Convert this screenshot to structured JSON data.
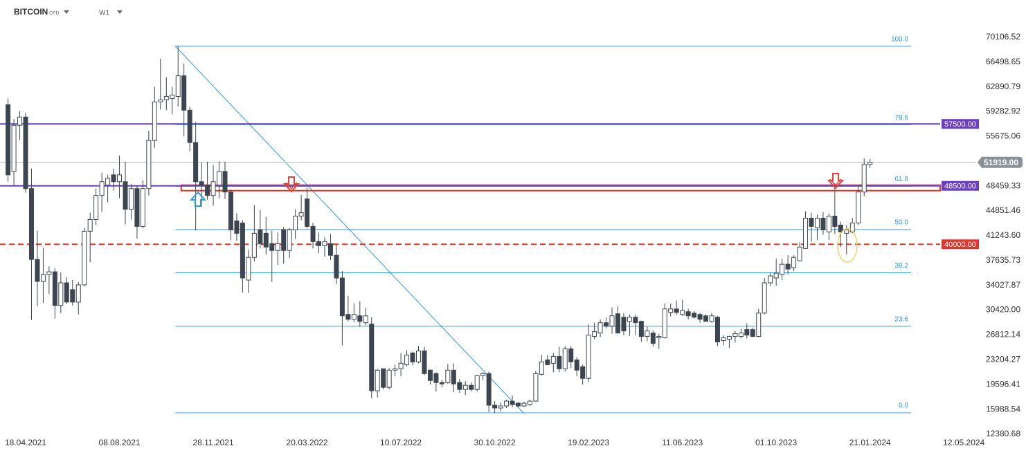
{
  "chart_data": {
    "type": "candlestick",
    "symbol": "BITCOIN",
    "instrument_type": "CFD",
    "timeframe": "W1",
    "categories": [
      null,
      null,
      null,
      "18.04.2021",
      null,
      null,
      null,
      null,
      null,
      null,
      null,
      null,
      null,
      null,
      null,
      null,
      null,
      null,
      null,
      "08.08.2021",
      null,
      null,
      null,
      null,
      null,
      null,
      null,
      null,
      null,
      null,
      null,
      null,
      null,
      null,
      null,
      "28.11.2021",
      null,
      null,
      null,
      null,
      null,
      null,
      null,
      null,
      null,
      null,
      null,
      null,
      null,
      null,
      null,
      "20.03.2022",
      null,
      null,
      null,
      null,
      null,
      null,
      null,
      null,
      null,
      null,
      null,
      null,
      null,
      null,
      null,
      "10.07.2022",
      null,
      null,
      null,
      null,
      null,
      null,
      null,
      null,
      null,
      null,
      null,
      null,
      null,
      null,
      null,
      "30.10.2022",
      null,
      null,
      null,
      null,
      null,
      null,
      null,
      null,
      null,
      null,
      null,
      null,
      null,
      null,
      null,
      "19.02.2023",
      null,
      null,
      null,
      null,
      null,
      null,
      null,
      null,
      null,
      null,
      null,
      null,
      null,
      null,
      null,
      "11.06.2023",
      null,
      null,
      null,
      null,
      null,
      null,
      null,
      null,
      null,
      null,
      null,
      null,
      null,
      null,
      null,
      "01.10.2023",
      null,
      null,
      null,
      null,
      null,
      null,
      null,
      null,
      null,
      null,
      null,
      null,
      null,
      null,
      null,
      "21.01.2024",
      null,
      null,
      null,
      null,
      null,
      null,
      null,
      null,
      null,
      null,
      null,
      null,
      null,
      null,
      null,
      "12.05.2024",
      null
    ],
    "open": [
      60300,
      50600,
      57300,
      58500,
      48100,
      37800,
      34600,
      35600,
      36000,
      31100,
      34400,
      33400,
      31600,
      34100,
      41900,
      43600,
      47100,
      48600,
      50100,
      49100,
      49100,
      45100,
      48100,
      42600,
      48100,
      55100,
      60700,
      61000,
      61200,
      61500,
      64500,
      59500,
      54800,
      49100,
      48600,
      47100,
      48600,
      50600,
      47600,
      43400,
      43100,
      34800,
      38100,
      42100,
      41600,
      40100,
      39100,
      42100,
      39100,
      42100,
      44100,
      46600,
      42600,
      40400,
      39800,
      40100,
      38400,
      35100,
      29800,
      29100,
      29600,
      28600,
      28400,
      18700,
      21900,
      19200,
      21700,
      21900,
      22500,
      24200,
      22900,
      24500,
      21700,
      21200,
      19900,
      19900,
      21700,
      19900,
      18900,
      19500,
      18900,
      20900,
      21200,
      16600,
      16200,
      16500,
      17200,
      16900,
      16500,
      16700,
      17200,
      21100,
      23200,
      22700,
      23700,
      21900,
      24800,
      23200,
      22200,
      20500,
      26600,
      27100,
      28600,
      28100,
      29900,
      29400,
      28800,
      29400,
      28800,
      26600,
      27100,
      26400,
      26400,
      30100,
      30600,
      29800,
      30200,
      30000,
      29800,
      29600,
      28800,
      29400,
      26000,
      26200,
      26600,
      26600,
      27600,
      27600,
      26600,
      30000,
      34400,
      35100,
      35600,
      37100,
      36600,
      37600,
      39400,
      43800,
      42400,
      43800,
      41800,
      44100,
      42800,
      41600,
      41800,
      43100,
      47600,
      51600,
      null,
      null,
      null,
      null,
      null,
      null,
      null,
      null,
      null,
      null,
      null,
      null,
      null,
      null,
      null,
      null,
      null
    ],
    "high": [
      61200,
      58200,
      59400,
      59100,
      51000,
      42000,
      39500,
      36800,
      36500,
      35900,
      35200,
      34800,
      34500,
      42400,
      44600,
      48100,
      50400,
      50100,
      51000,
      52900,
      52000,
      48800,
      48500,
      49300,
      56500,
      62900,
      67000,
      64300,
      62900,
      68800,
      66300,
      60000,
      57800,
      51900,
      52000,
      51500,
      52100,
      52000,
      48000,
      44500,
      43500,
      39200,
      45700,
      45000,
      44000,
      42000,
      41700,
      42500,
      42400,
      45100,
      47200,
      48200,
      43100,
      41700,
      41000,
      41500,
      40000,
      36100,
      32500,
      31400,
      31700,
      30800,
      29400,
      21900,
      21900,
      22000,
      22500,
      24200,
      24600,
      24400,
      25200,
      25100,
      21800,
      21400,
      20300,
      22600,
      22700,
      20400,
      20100,
      19900,
      21000,
      21400,
      21500,
      17200,
      17000,
      17400,
      18000,
      17100,
      17100,
      17400,
      21600,
      23900,
      23900,
      24200,
      25100,
      25200,
      25200,
      23600,
      22500,
      28400,
      28600,
      29100,
      29400,
      30800,
      31000,
      30000,
      29800,
      29800,
      28900,
      28000,
      27500,
      27000,
      31400,
      31400,
      31800,
      31900,
      30600,
      30300,
      30000,
      29800,
      30000,
      29600,
      26800,
      26700,
      27400,
      27700,
      28500,
      27900,
      30600,
      35100,
      35900,
      37900,
      37900,
      38400,
      38400,
      40300,
      44800,
      44600,
      44300,
      44700,
      44500,
      48900,
      43300,
      42800,
      43800,
      48600,
      52500,
      52400,
      null,
      null,
      null,
      null,
      null,
      null,
      null,
      null,
      null,
      null,
      null,
      null,
      null,
      null,
      null,
      null,
      null
    ],
    "low": [
      49100,
      48500,
      55200,
      47500,
      29000,
      31000,
      31500,
      32800,
      29200,
      30000,
      31300,
      31100,
      29800,
      33900,
      37400,
      42800,
      44700,
      46100,
      47800,
      46700,
      42900,
      43600,
      40800,
      42300,
      47100,
      54000,
      59600,
      59500,
      58900,
      60000,
      55700,
      53500,
      42000,
      45500,
      46500,
      45600,
      46700,
      46600,
      40600,
      40500,
      33000,
      32900,
      37500,
      39400,
      38500,
      34500,
      37000,
      37200,
      38000,
      40800,
      43500,
      42300,
      39400,
      38700,
      38200,
      37700,
      34200,
      25300,
      28800,
      28700,
      28000,
      28200,
      17600,
      17700,
      18900,
      18900,
      20800,
      20800,
      22200,
      22400,
      22700,
      21000,
      19600,
      18600,
      19200,
      19700,
      18500,
      18400,
      18100,
      18600,
      18600,
      20200,
      15600,
      15500,
      15700,
      16200,
      16300,
      16300,
      16300,
      16500,
      17100,
      20900,
      22400,
      21400,
      21400,
      21500,
      22000,
      20800,
      19600,
      20000,
      26200,
      26500,
      27800,
      27000,
      27000,
      26800,
      26700,
      26800,
      25800,
      25900,
      25100,
      24800,
      26300,
      29500,
      29700,
      29600,
      29100,
      29200,
      28600,
      28800,
      28600,
      25200,
      25300,
      24900,
      25700,
      26300,
      26300,
      26500,
      26500,
      29800,
      33900,
      34000,
      34800,
      35600,
      36100,
      37500,
      39300,
      40400,
      40600,
      41400,
      40600,
      41500,
      39600,
      38500,
      41600,
      42800,
      47000,
      51100,
      null,
      null,
      null,
      null,
      null,
      null,
      null,
      null,
      null,
      null,
      null,
      null,
      null,
      null,
      null,
      null,
      null
    ],
    "close": [
      50100,
      57300,
      58500,
      48100,
      37800,
      34600,
      35600,
      36000,
      31100,
      34400,
      31600,
      31600,
      34100,
      41900,
      43600,
      47100,
      49100,
      49600,
      49100,
      50100,
      45100,
      48100,
      42600,
      48100,
      55100,
      60700,
      61000,
      61500,
      61700,
      64500,
      59500,
      54800,
      49100,
      48600,
      47100,
      49100,
      50600,
      47600,
      42100,
      41600,
      35100,
      38100,
      41600,
      40100,
      39600,
      39100,
      40100,
      39100,
      42100,
      44100,
      44600,
      42600,
      40400,
      39800,
      40400,
      38400,
      35100,
      29600,
      29100,
      29800,
      28800,
      29600,
      18700,
      21700,
      19200,
      21700,
      21900,
      22700,
      23900,
      22900,
      24500,
      21200,
      20200,
      19900,
      19700,
      21700,
      19700,
      18900,
      19500,
      18900,
      20900,
      21200,
      16600,
      16200,
      16500,
      17200,
      16700,
      16500,
      16900,
      17200,
      21200,
      22900,
      22500,
      23700,
      21900,
      24800,
      22900,
      21700,
      20500,
      26800,
      27300,
      28600,
      28100,
      29600,
      27100,
      27400,
      29400,
      28600,
      26600,
      27400,
      25600,
      26600,
      30600,
      30600,
      30100,
      30400,
      29600,
      29400,
      29100,
      28800,
      29600,
      25800,
      26400,
      26600,
      27000,
      27100,
      26800,
      26600,
      30000,
      34400,
      35400,
      35800,
      37100,
      36400,
      38100,
      39600,
      43800,
      42600,
      43800,
      42100,
      44100,
      42600,
      41800,
      42100,
      43100,
      47600,
      51600,
      51919,
      null,
      null,
      null,
      null,
      null,
      null,
      null,
      null,
      null,
      null,
      null,
      null,
      null,
      null,
      null,
      null,
      null
    ],
    "colors": {
      "up": "#ffffff",
      "down": "#3d4650",
      "outline": "#3d4650"
    },
    "ylim": [
      12380.68,
      72000
    ],
    "yticks": [
      70106.52,
      66498.65,
      62890.79,
      59282.92,
      55675.06,
      48459.33,
      44851.46,
      {
        "value": 41243.6,
        "label": "41243.60"
      },
      37635.73,
      34027.87,
      {
        "value": 30420,
        "label": "30420.00"
      },
      26812.14,
      23204.27,
      19596.41,
      15988.54,
      12380.68
    ],
    "levels": [
      {
        "value": 57500,
        "label": "57500.00",
        "color": "#6b3fbf",
        "dashed": false
      },
      {
        "value": 48500,
        "label": "48500.00",
        "color": "#6b3fbf",
        "dashed": false
      },
      {
        "value": 40000,
        "label": "40000.00",
        "color": "#e0342c",
        "dashed": true
      }
    ],
    "last_price": {
      "value": 51919,
      "label": "51919.00",
      "color": "#8a9098"
    },
    "zone": {
      "from": 47800,
      "to": 48600,
      "start": 30,
      "color": "#e0342c"
    },
    "fibonacci": {
      "high": 68800,
      "low": 15500,
      "from": 29,
      "to": 154,
      "color": "#2f9be0",
      "levels": [
        {
          "value": 100,
          "label": "100.0"
        },
        {
          "value": 78.6,
          "label": "78.6"
        },
        {
          "value": 61.8,
          "label": "61.8"
        },
        {
          "value": 50,
          "label": "50.0"
        },
        {
          "value": 38.2,
          "label": "38.2"
        },
        {
          "value": 23.6,
          "label": "23.6"
        },
        {
          "value": 0,
          "label": "0.0"
        }
      ]
    },
    "trendline": {
      "from": 29,
      "to": 88,
      "start_value": 68800,
      "end_value": 15400,
      "color": "#2f9be0"
    }
  }
}
